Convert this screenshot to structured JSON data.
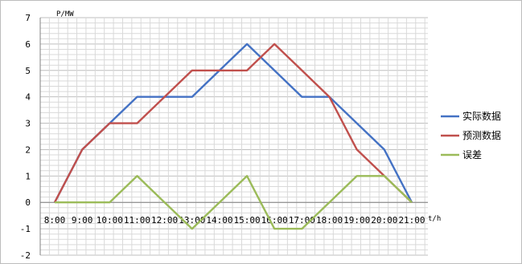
{
  "chart_data": {
    "type": "line",
    "y_unit_label": "P/MW",
    "x_unit_label": "t/h",
    "categories": [
      "8:00",
      "9:00",
      "10:00",
      "11:00",
      "12:00",
      "13:00",
      "14:00",
      "15:00",
      "16:00",
      "17:00",
      "18:00",
      "19:00",
      "20:00",
      "21:00"
    ],
    "ylim": [
      -2,
      7
    ],
    "yticks": [
      -2,
      -1,
      0,
      1,
      2,
      3,
      4,
      5,
      6,
      7
    ],
    "grid": true,
    "legend_position": "right",
    "series": [
      {
        "name": "实际数据",
        "color": "#4472c4",
        "values": [
          0,
          2,
          3,
          4,
          4,
          4,
          5,
          6,
          5,
          4,
          4,
          3,
          2,
          0
        ]
      },
      {
        "name": "预测数据",
        "color": "#c0504d",
        "values": [
          0,
          2,
          3,
          3,
          4,
          5,
          5,
          5,
          6,
          5,
          4,
          2,
          1,
          0
        ]
      },
      {
        "name": "误差",
        "color": "#9bbb59",
        "values": [
          0,
          0,
          0,
          1,
          0,
          -1,
          0,
          1,
          -1,
          -1,
          0,
          1,
          1,
          0
        ]
      }
    ]
  }
}
